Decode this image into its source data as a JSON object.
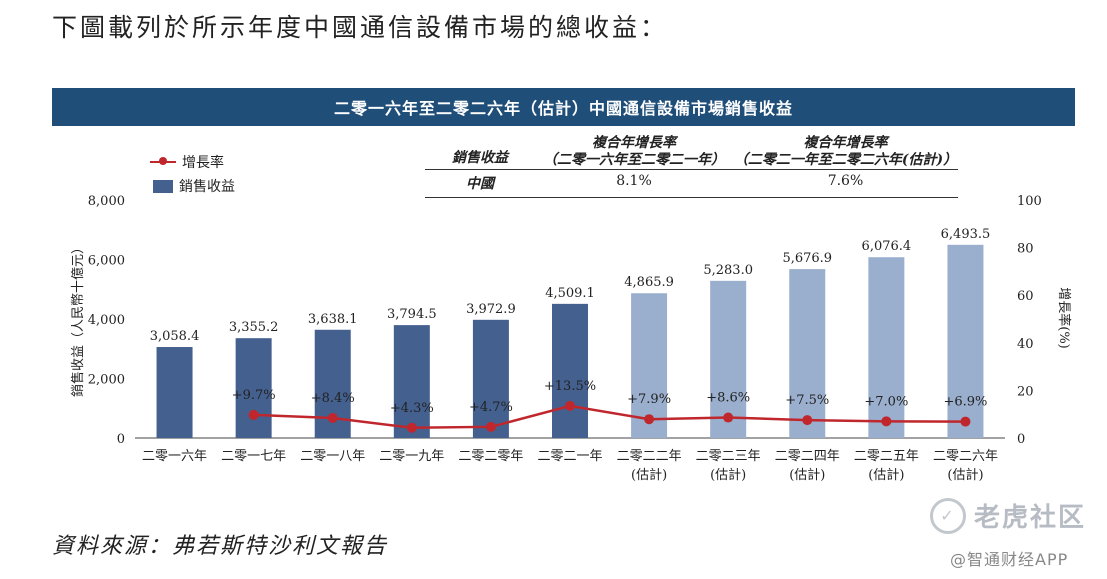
{
  "heading": "下圖載列於所示年度中國通信設備市場的總收益：",
  "chart_data": {
    "type": "bar",
    "title": "二零一六年至二零二六年（估計）中國通信設備市場銷售收益",
    "categories": [
      [
        "二零一六年",
        ""
      ],
      [
        "二零一七年",
        ""
      ],
      [
        "二零一八年",
        ""
      ],
      [
        "二零一九年",
        ""
      ],
      [
        "二零二零年",
        ""
      ],
      [
        "二零二一年",
        ""
      ],
      [
        "二零二二年",
        "(估計)"
      ],
      [
        "二零二三年",
        "(估計)"
      ],
      [
        "二零二四年",
        "(估計)"
      ],
      [
        "二零二五年",
        "(估計)"
      ],
      [
        "二零二六年",
        "(估計)"
      ]
    ],
    "series": [
      {
        "name": "銷售收益",
        "type": "bar",
        "values": [
          3058.4,
          3355.2,
          3638.1,
          3794.5,
          3972.9,
          4509.1,
          4865.9,
          5283.0,
          5676.9,
          6076.4,
          6493.5
        ],
        "labels": [
          "3,058.4",
          "3,355.2",
          "3,638.1",
          "3,794.5",
          "3,972.9",
          "4,509.1",
          "4,865.9",
          "5,283.0",
          "5,676.9",
          "6,076.4",
          "6,493.5"
        ],
        "colors": [
          "#44608f",
          "#44608f",
          "#44608f",
          "#44608f",
          "#44608f",
          "#44608f",
          "#9aaecd",
          "#9aaecd",
          "#9aaecd",
          "#9aaecd",
          "#9aaecd"
        ]
      },
      {
        "name": "增長率",
        "type": "line",
        "axis": "right",
        "values": [
          null,
          9.7,
          8.4,
          4.3,
          4.7,
          13.5,
          7.9,
          8.6,
          7.5,
          7.0,
          6.9
        ],
        "labels": [
          "",
          "+9.7%",
          "+8.4%",
          "+4.3%",
          "+4.7%",
          "+13.5%",
          "+7.9%",
          "+8.6%",
          "+7.5%",
          "+7.0%",
          "+6.9%"
        ],
        "color": "#c0272d"
      }
    ],
    "ylabel": "銷售收益（人民幣十億元）",
    "ylim": [
      0,
      8000
    ],
    "yticks": [
      "0",
      "2,000",
      "4,000",
      "6,000",
      "8,000"
    ],
    "y2label": "增長率(%)",
    "y2lim": [
      0,
      100
    ],
    "y2ticks": [
      "0",
      "20",
      "40",
      "60",
      "80",
      "100"
    ],
    "grid": false,
    "legend": "top-left"
  },
  "cagr_table": {
    "headers": [
      "銷售收益",
      "複合年增長率\n（二零一六年至二零二一年）",
      "複合年增長率\n（二零二一年至二零二六年(估計)）"
    ],
    "rows": [
      [
        "中國",
        "8.1%",
        "7.6%"
      ]
    ]
  },
  "source": "資料來源：弗若斯特沙利文報告",
  "watermarks": {
    "brand": "老虎社区",
    "app": "@智通财经APP"
  },
  "colors": {
    "banner": "#1f4e79",
    "actual_bar": "#44608f",
    "forecast_bar": "#9aaecd",
    "growth_line": "#c0272d"
  }
}
